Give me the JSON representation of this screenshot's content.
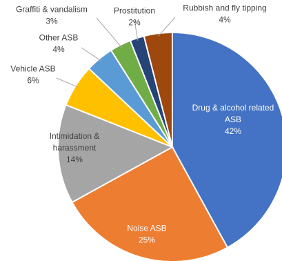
{
  "chart_data": {
    "type": "pie",
    "title": "",
    "start_angle_deg": 0,
    "direction": "clockwise",
    "slices": [
      {
        "name_lines": [
          "Drug & alcohol related",
          "ASB"
        ],
        "value": 42,
        "value_label": "42%",
        "color": "#4472C4",
        "label_color": "#ffffff"
      },
      {
        "name_lines": [
          "Noise ASB"
        ],
        "value": 25,
        "value_label": "25%",
        "color": "#ED7D31",
        "label_color": "#ffffff"
      },
      {
        "name_lines": [
          "Intimidation &",
          "harassment"
        ],
        "value": 14,
        "value_label": "14%",
        "color": "#A5A5A5",
        "label_color": "#404040"
      },
      {
        "name_lines": [
          "Vehicle ASB"
        ],
        "value": 6,
        "value_label": "6%",
        "color": "#FFC000",
        "label_color": "#404040"
      },
      {
        "name_lines": [
          "Other ASB"
        ],
        "value": 4,
        "value_label": "4%",
        "color": "#5B9BD5",
        "label_color": "#404040"
      },
      {
        "name_lines": [
          "Graffiti & vandalism"
        ],
        "value": 3,
        "value_label": "3%",
        "color": "#70AD47",
        "label_color": "#404040"
      },
      {
        "name_lines": [
          "Prostitution"
        ],
        "value": 2,
        "value_label": "2%",
        "color": "#264478",
        "label_color": "#404040"
      },
      {
        "name_lines": [
          "Rubbish and fly tipping"
        ],
        "value": 4,
        "value_label": "4%",
        "color": "#9E480E",
        "label_color": "#404040"
      }
    ]
  }
}
